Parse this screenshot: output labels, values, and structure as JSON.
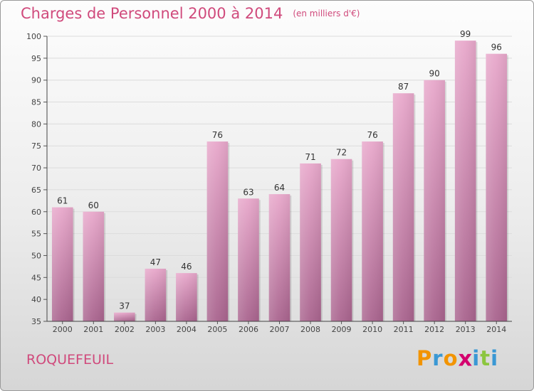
{
  "chart_data": {
    "type": "bar",
    "title": "Charges de Personnel 2000 à 2014",
    "subtitle": "(en milliers d'€)",
    "categories": [
      "2000",
      "2001",
      "2002",
      "2003",
      "2004",
      "2005",
      "2006",
      "2007",
      "2008",
      "2009",
      "2010",
      "2011",
      "2012",
      "2013",
      "2014"
    ],
    "values": [
      61,
      60,
      37,
      47,
      46,
      76,
      63,
      64,
      71,
      72,
      76,
      87,
      90,
      99,
      96
    ],
    "ylim": [
      35,
      100
    ],
    "yticks": [
      35,
      40,
      45,
      50,
      55,
      60,
      65,
      70,
      75,
      80,
      85,
      90,
      95,
      100
    ],
    "grid": true,
    "bar_color": "#c47aa2"
  },
  "footer": {
    "commune": "ROQUEFEUIL"
  },
  "logo": {
    "text": "Proxiti",
    "colors": [
      "#f29400",
      "#3a98d4",
      "#f29400",
      "#d4006e",
      "#3a98d4",
      "#8cc63f",
      "#3a98d4"
    ]
  }
}
